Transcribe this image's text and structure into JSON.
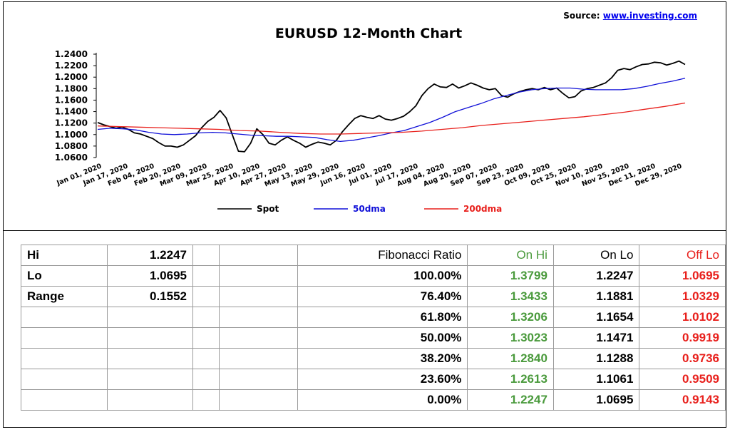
{
  "source": {
    "label": "Source:",
    "link": "www.investing.com"
  },
  "chart_data": {
    "type": "line",
    "title": "EURUSD 12-Month Chart",
    "ylim": [
      1.06,
      1.24
    ],
    "ytick_labels": [
      "1.2400",
      "1.2200",
      "1.2000",
      "1.1800",
      "1.1600",
      "1.1400",
      "1.1200",
      "1.1000",
      "1.0800",
      "1.0600"
    ],
    "xtick_labels": [
      "Jan 01, 2020",
      "Jan 17, 2020",
      "Feb 04, 2020",
      "Feb 20, 2020",
      "Mar 09, 2020",
      "Mar 25, 2020",
      "Apr 10, 2020",
      "Apr 27, 2020",
      "May 13, 2020",
      "May 29, 2020",
      "Jun 16, 2020",
      "Jul 01, 2020",
      "Jul 17, 2020",
      "Aug 04, 2020",
      "Aug 20, 2020",
      "Sep 07, 2020",
      "Sep 23, 2020",
      "Oct 09, 2020",
      "Oct 25, 2020",
      "Nov 10, 2020",
      "Nov 25, 2020",
      "Dec 11, 2020",
      "Dec 29, 2020"
    ],
    "legend_position": "bottom",
    "grid": false,
    "series": [
      {
        "name": "Spot",
        "color": "#000000",
        "width": 1.8,
        "values": [
          1.121,
          1.117,
          1.114,
          1.111,
          1.113,
          1.109,
          1.103,
          1.101,
          1.097,
          1.093,
          1.086,
          1.08,
          1.08,
          1.078,
          1.082,
          1.09,
          1.098,
          1.112,
          1.123,
          1.13,
          1.142,
          1.129,
          1.1,
          1.071,
          1.07,
          1.085,
          1.11,
          1.1,
          1.085,
          1.082,
          1.09,
          1.096,
          1.09,
          1.085,
          1.078,
          1.083,
          1.087,
          1.085,
          1.082,
          1.09,
          1.105,
          1.117,
          1.128,
          1.133,
          1.13,
          1.128,
          1.133,
          1.127,
          1.125,
          1.128,
          1.132,
          1.14,
          1.15,
          1.168,
          1.18,
          1.188,
          1.183,
          1.182,
          1.188,
          1.181,
          1.185,
          1.19,
          1.186,
          1.181,
          1.178,
          1.18,
          1.168,
          1.165,
          1.171,
          1.175,
          1.178,
          1.18,
          1.178,
          1.182,
          1.178,
          1.181,
          1.172,
          1.164,
          1.166,
          1.176,
          1.18,
          1.182,
          1.186,
          1.19,
          1.199,
          1.212,
          1.215,
          1.213,
          1.218,
          1.222,
          1.223,
          1.226,
          1.225,
          1.221,
          1.224,
          1.228,
          1.222
        ]
      },
      {
        "name": "50dma",
        "color": "#1010d8",
        "width": 1.3,
        "values": [
          1.109,
          1.111,
          1.11,
          1.108,
          1.104,
          1.101,
          1.1,
          1.101,
          1.103,
          1.104,
          1.103,
          1.101,
          1.099,
          1.098,
          1.097,
          1.097,
          1.096,
          1.095,
          1.091,
          1.088,
          1.09,
          1.094,
          1.098,
          1.103,
          1.107,
          1.114,
          1.121,
          1.13,
          1.14,
          1.147,
          1.154,
          1.162,
          1.168,
          1.174,
          1.178,
          1.18,
          1.181,
          1.181,
          1.179,
          1.178,
          1.178,
          1.178,
          1.18,
          1.184,
          1.189,
          1.193,
          1.198
        ]
      },
      {
        "name": "200dma",
        "color": "#e8201c",
        "width": 1.3,
        "values": [
          1.115,
          1.114,
          1.113,
          1.112,
          1.111,
          1.11,
          1.109,
          1.107,
          1.106,
          1.104,
          1.102,
          1.101,
          1.101,
          1.102,
          1.103,
          1.104,
          1.106,
          1.109,
          1.112,
          1.116,
          1.119,
          1.122,
          1.125,
          1.128,
          1.131,
          1.135,
          1.139,
          1.144,
          1.149,
          1.155
        ]
      }
    ]
  },
  "table": {
    "header": {
      "label": "Hi",
      "value": "1.2247",
      "ratio": "Fibonacci  Ratio",
      "on_hi": "On Hi",
      "on_lo": "On Lo",
      "off_lo": "Off Lo"
    },
    "rows": [
      {
        "label": "Lo",
        "value": "1.0695",
        "ratio": "100.00%",
        "on_hi": "1.3799",
        "on_lo": "1.2247",
        "off_lo": "1.0695"
      },
      {
        "label": "Range",
        "value": "0.1552",
        "ratio": "76.40%",
        "on_hi": "1.3433",
        "on_lo": "1.1881",
        "off_lo": "1.0329"
      },
      {
        "label": "",
        "value": "",
        "ratio": "61.80%",
        "on_hi": "1.3206",
        "on_lo": "1.1654",
        "off_lo": "1.0102"
      },
      {
        "label": "",
        "value": "",
        "ratio": "50.00%",
        "on_hi": "1.3023",
        "on_lo": "1.1471",
        "off_lo": "0.9919"
      },
      {
        "label": "",
        "value": "",
        "ratio": "38.20%",
        "on_hi": "1.2840",
        "on_lo": "1.1288",
        "off_lo": "0.9736"
      },
      {
        "label": "",
        "value": "",
        "ratio": "23.60%",
        "on_hi": "1.2613",
        "on_lo": "1.1061",
        "off_lo": "0.9509"
      },
      {
        "label": "",
        "value": "",
        "ratio": "0.00%",
        "on_hi": "1.2247",
        "on_lo": "1.0695",
        "off_lo": "0.9143"
      }
    ]
  }
}
